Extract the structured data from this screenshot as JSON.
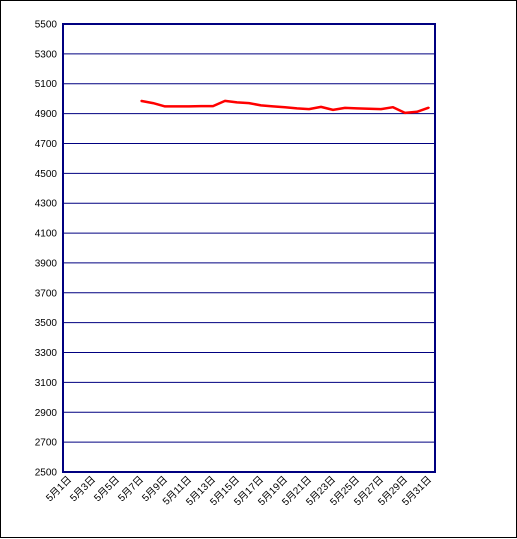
{
  "chart_data": {
    "type": "line",
    "title": "",
    "xlabel": "",
    "ylabel": "",
    "ylim": [
      2500,
      5500
    ],
    "yticks": [
      "5500",
      "5300",
      "5100",
      "4900",
      "4700",
      "4500",
      "4300",
      "4100",
      "3900",
      "3700",
      "3500",
      "3300",
      "3100",
      "2900",
      "2700",
      "2500"
    ],
    "ytick_values": [
      5500,
      5300,
      5100,
      4900,
      4700,
      4500,
      4300,
      4100,
      3900,
      3700,
      3500,
      3300,
      3100,
      2900,
      2700,
      2500
    ],
    "x_categories": [
      "5月1日",
      "5月2日",
      "5月3日",
      "5月4日",
      "5月5日",
      "5月6日",
      "5月7日",
      "5月8日",
      "5月9日",
      "5月10日",
      "5月11日",
      "5月12日",
      "5月13日",
      "5月14日",
      "5月15日",
      "5月16日",
      "5月17日",
      "5月18日",
      "5月19日",
      "5月20日",
      "5月21日",
      "5月22日",
      "5月23日",
      "5月24日",
      "5月25日",
      "5月26日",
      "5月27日",
      "5月28日",
      "5月29日",
      "5月30日",
      "5月31日"
    ],
    "xtick_labels": [
      "5月1日",
      "5月3日",
      "5月5日",
      "5月7日",
      "5月9日",
      "5月11日",
      "5月13日",
      "5月15日",
      "5月17日",
      "5月19日",
      "5月21日",
      "5月23日",
      "5月25日",
      "5月27日",
      "5月29日",
      "5月31日"
    ],
    "series": [
      {
        "color": "#ff0000",
        "values": [
          null,
          null,
          null,
          null,
          null,
          null,
          4985,
          4970,
          4948,
          4948,
          4948,
          4950,
          4950,
          4985,
          4975,
          4970,
          4955,
          4948,
          4942,
          4935,
          4930,
          4945,
          4925,
          4938,
          4935,
          4932,
          4930,
          4943,
          4905,
          4912,
          4940
        ]
      }
    ],
    "grid": true,
    "grid_color": "#000080",
    "axis_color": "#000080",
    "legend": "none"
  }
}
